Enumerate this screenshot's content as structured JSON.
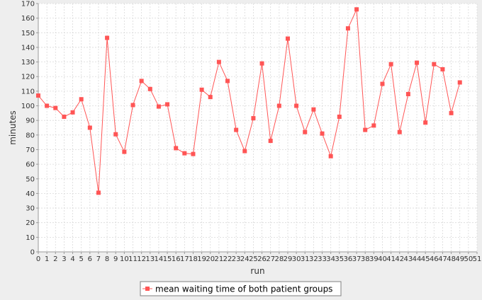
{
  "chart_data": {
    "type": "line",
    "title": "",
    "xlabel": "run",
    "ylabel": "minutes",
    "xlim": [
      0,
      51
    ],
    "ylim": [
      0,
      170
    ],
    "ytick_step": 10,
    "xtick_step": 1,
    "grid": true,
    "legend_position": "bottom-center",
    "colors": {
      "series": "#ff5555",
      "plot_background": "#ffffff",
      "page_background": "#eeeeee",
      "grid": "#d9d9d9",
      "axis": "#999999"
    },
    "series": [
      {
        "name": "mean waiting time of both patient groups",
        "marker": "square",
        "x": [
          0,
          1,
          2,
          3,
          4,
          5,
          6,
          7,
          8,
          9,
          10,
          11,
          12,
          13,
          14,
          15,
          16,
          17,
          18,
          19,
          20,
          21,
          22,
          23,
          24,
          25,
          26,
          27,
          28,
          29,
          30,
          31,
          32,
          33,
          34,
          35,
          36,
          37,
          38,
          39,
          40,
          41,
          42,
          43,
          44,
          45,
          46,
          47,
          48,
          49
        ],
        "values": [
          107,
          100,
          98.5,
          92.5,
          95.5,
          104.5,
          85,
          40.5,
          146.5,
          80.5,
          68.5,
          100.5,
          117,
          111.5,
          99.5,
          101,
          71,
          67.5,
          67,
          111,
          106,
          130,
          117,
          83.5,
          69,
          91.5,
          129,
          76,
          100,
          146,
          100,
          82,
          97.5,
          81,
          65.5,
          92.5,
          153,
          166,
          83.5,
          86.5,
          115,
          128.5,
          82,
          108,
          129.5,
          88.5,
          128.5,
          125,
          95,
          116
        ]
      }
    ]
  }
}
